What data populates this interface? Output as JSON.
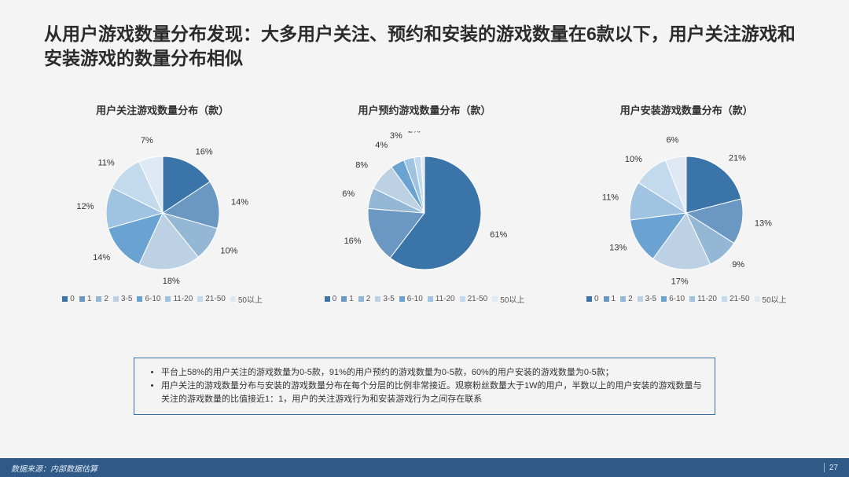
{
  "title": "从用户游戏数量分布发现：大多用户关注、预约和安装的游戏数量在6款以下，用户关注游戏和安装游戏的数量分布相似",
  "legend_labels": [
    "0",
    "1",
    "2",
    "3-5",
    "6-10",
    "11-20",
    "21-50",
    "50以上"
  ],
  "pie_colors": [
    "#3b74a8",
    "#6a98c2",
    "#94b7d5",
    "#bcd1e4",
    "#6aa3d1",
    "#9fc3e1",
    "#c3d9ec",
    "#dfe9f3"
  ],
  "charts": [
    {
      "title": "用户关注游戏数量分布（款）",
      "values": [
        16,
        14,
        10,
        18,
        14,
        12,
        11,
        7
      ],
      "label_offsets": [
        0,
        0,
        0,
        0,
        0,
        0,
        0,
        6
      ]
    },
    {
      "title": "用户预约游戏数量分布（款）",
      "values": [
        61,
        16,
        6,
        8,
        4,
        3,
        2,
        1
      ],
      "label_offsets": [
        0,
        0,
        4,
        6,
        10,
        14,
        18,
        24
      ]
    },
    {
      "title": "用户安装游戏数量分布（款）",
      "values": [
        21,
        13,
        9,
        17,
        13,
        11,
        10,
        6
      ],
      "label_offsets": [
        0,
        0,
        0,
        0,
        0,
        0,
        0,
        6
      ]
    }
  ],
  "notes": [
    "平台上58%的用户关注的游戏数量为0-5款，91%的用户预约的游戏数量为0-5款，60%的用户安装的游戏数量为0-5款；",
    "用户关注的游戏数量分布与安装的游戏数量分布在每个分层的比例非常接近。观察粉丝数量大于1W的用户，半数以上的用户安装的游戏数量与关注的游戏数量的比值接近1：1，用户的关注游戏行为和安装游戏行为之间存在联系"
  ],
  "footer": {
    "source": "数据来源：内部数据估算",
    "page": "27"
  },
  "style": {
    "title_fontsize": 23,
    "chart_title_fontsize": 13,
    "label_fontsize": 11,
    "legend_fontsize": 10,
    "notes_fontsize": 11,
    "notes_border_color": "#3c6fa8",
    "footer_bg": "#2f5a88",
    "background": "#f4f4f4",
    "pie_radius": 72
  }
}
